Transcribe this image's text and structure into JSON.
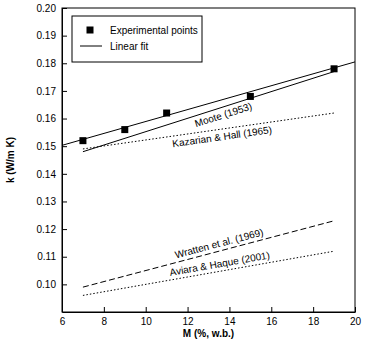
{
  "chart_data": {
    "type": "line",
    "xlabel": "M (%, w.b.)",
    "ylabel": "k (W/m K)",
    "xlim": [
      6,
      20
    ],
    "xticks": [
      6,
      8,
      10,
      12,
      14,
      16,
      18,
      20
    ],
    "ylim": [
      0.09,
      0.2
    ],
    "yticks": [
      {
        "value": 0.1,
        "label": "0.10"
      },
      0.11,
      0.12,
      0.13,
      0.14,
      0.15,
      0.16,
      0.17,
      0.18,
      0.19,
      {
        "value": 0.2,
        "label": "0.20"
      }
    ],
    "grid": false,
    "legend": "upper left",
    "series": [
      {
        "name": "Experimental points",
        "type": "scatter",
        "marker": "square",
        "color": "#000000",
        "x": [
          7,
          9,
          11,
          15,
          19
        ],
        "values": [
          0.152,
          0.156,
          0.162,
          0.168,
          0.178
        ]
      },
      {
        "name": "Linear fit",
        "type": "line",
        "line_style": "solid",
        "color": "#000000",
        "x": [
          6,
          20
        ],
        "values": [
          0.1503,
          0.1805
        ]
      }
    ],
    "annotations": [
      {
        "text": "Moote (1953)",
        "line_style": "solid",
        "color": "#000000",
        "x": [
          7,
          19
        ],
        "values": [
          0.148,
          0.177
        ]
      },
      {
        "text": "Kazarian & Hall (1965)",
        "line_style": "dotted",
        "color": "#000000",
        "x": [
          7,
          19
        ],
        "values": [
          0.149,
          0.162
        ]
      },
      {
        "text": "Wratten et al. (1969)",
        "line_style": "dashed",
        "color": "#000000",
        "x": [
          7,
          19
        ],
        "values": [
          0.099,
          0.123
        ]
      },
      {
        "text": "Aviara & Haque (2001)",
        "line_style": "dotted",
        "color": "#000000",
        "x": [
          7,
          19
        ],
        "values": [
          0.096,
          0.112
        ]
      }
    ]
  }
}
